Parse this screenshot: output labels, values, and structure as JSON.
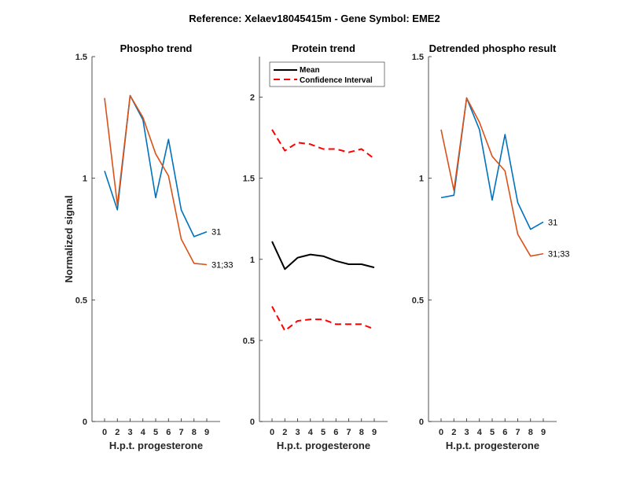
{
  "chart_data": {
    "title": "Reference:  Xelaev18045415m - Gene Symbol:  EME2",
    "panels": [
      {
        "type": "line",
        "title": "Phospho trend",
        "xlabel": "H.p.t. progesterone",
        "ylabel": "Normalized signal",
        "categories": [
          "0",
          "2",
          "3",
          "4",
          "5",
          "6",
          "7",
          "8",
          "9"
        ],
        "ylim": [
          0,
          1.5
        ],
        "yticks": [
          "0",
          "0.5",
          "1",
          "1.5"
        ],
        "ytick_values": [
          0,
          0.5,
          1,
          1.5
        ],
        "grid": false,
        "series": [
          {
            "name": "31",
            "color": "#0072BD",
            "values": [
              1.03,
              0.87,
              1.34,
              1.24,
              0.92,
              1.16,
              0.87,
              0.76,
              0.78
            ]
          },
          {
            "name": "31;33",
            "color": "#D95319",
            "values": [
              1.33,
              0.89,
              1.34,
              1.25,
              1.1,
              1.01,
              0.75,
              0.65,
              0.645
            ]
          }
        ]
      },
      {
        "type": "line",
        "title": "Protein trend",
        "xlabel": "H.p.t. progesterone",
        "ylabel": "",
        "categories": [
          "0",
          "2",
          "3",
          "4",
          "5",
          "6",
          "7",
          "8",
          "9"
        ],
        "ylim": [
          0,
          2.25
        ],
        "yticks": [
          "0",
          "0.5",
          "1",
          "1.5",
          "2"
        ],
        "ytick_values": [
          0,
          0.5,
          1,
          1.5,
          2
        ],
        "grid": false,
        "legend": {
          "placement": "top-left",
          "entries": [
            "Mean",
            "Confidence Interval"
          ]
        },
        "series": [
          {
            "name": "Mean",
            "color": "#000000",
            "style": "solid",
            "values": [
              1.11,
              0.94,
              1.01,
              1.03,
              1.02,
              0.99,
              0.97,
              0.97,
              0.95
            ]
          },
          {
            "name": "Confidence Interval upper",
            "color": "#FF0000",
            "style": "dashed",
            "values": [
              1.8,
              1.67,
              1.72,
              1.71,
              1.68,
              1.68,
              1.66,
              1.68,
              1.62
            ]
          },
          {
            "name": "Confidence Interval lower",
            "color": "#FF0000",
            "style": "dashed",
            "values": [
              0.71,
              0.56,
              0.62,
              0.63,
              0.63,
              0.6,
              0.6,
              0.6,
              0.57
            ]
          }
        ]
      },
      {
        "type": "line",
        "title": "Detrended phospho result",
        "xlabel": "H.p.t. progesterone",
        "ylabel": "",
        "categories": [
          "0",
          "2",
          "3",
          "4",
          "5",
          "6",
          "7",
          "8",
          "9"
        ],
        "ylim": [
          0,
          1.5
        ],
        "yticks": [
          "0",
          "0.5",
          "1",
          "1.5"
        ],
        "ytick_values": [
          0,
          0.5,
          1,
          1.5
        ],
        "grid": false,
        "series": [
          {
            "name": "31",
            "color": "#0072BD",
            "values": [
              0.92,
              0.93,
              1.33,
              1.2,
              0.91,
              1.18,
              0.9,
              0.79,
              0.82
            ]
          },
          {
            "name": "31;33",
            "color": "#D95319",
            "values": [
              1.2,
              0.95,
              1.33,
              1.23,
              1.09,
              1.03,
              0.77,
              0.68,
              0.69
            ]
          }
        ]
      }
    ]
  }
}
